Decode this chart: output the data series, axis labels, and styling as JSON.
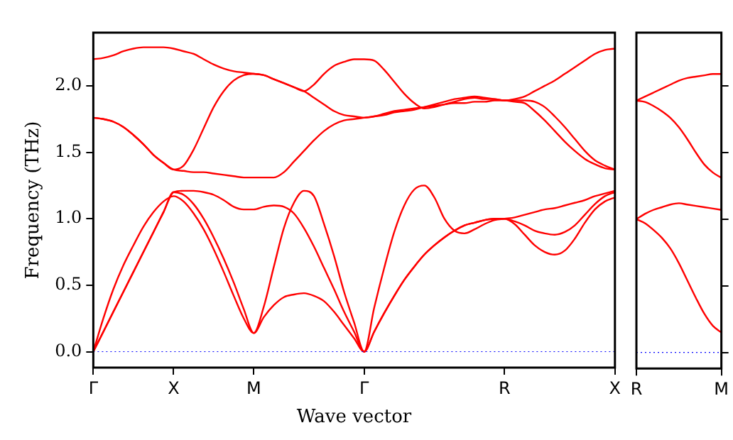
{
  "chart_data": [
    {
      "type": "line",
      "xlabel": "Wave vector",
      "ylabel": "Frequency (THz)",
      "categories": [
        "Γ",
        null,
        null,
        null,
        null,
        null,
        null,
        null,
        "X",
        null,
        null,
        null,
        null,
        null,
        null,
        null,
        "M",
        null,
        null,
        null,
        null,
        null,
        null,
        null,
        null,
        null,
        null,
        "Γ",
        null,
        null,
        null,
        null,
        null,
        null,
        null,
        null,
        null,
        null,
        null,
        null,
        null,
        "R",
        null,
        null,
        null,
        null,
        null,
        null,
        null,
        null,
        null,
        null,
        "X"
      ],
      "ylim": [
        -0.12,
        2.4
      ],
      "yticks": [
        {
          "value": 0,
          "label": "0.0"
        },
        {
          "value": 0.5,
          "label": "0.5"
        },
        {
          "value": 1,
          "label": "1.0"
        },
        {
          "value": 1.5,
          "label": "1.5"
        },
        {
          "value": 2,
          "label": "2.0"
        }
      ],
      "ref_lines": [
        {
          "axis": "y",
          "value": 0,
          "color": "#0000ff",
          "line_style": "dotted"
        }
      ],
      "series": [
        {
          "color": "#ff0000",
          "values": [
            0,
            0.15,
            0.3,
            0.45,
            0.6,
            0.75,
            0.9,
            1.05,
            1.2,
            1.18,
            1.11,
            1.0,
            0.86,
            0.7,
            0.52,
            0.32,
            0.14,
            0.34,
            0.64,
            0.93,
            1.12,
            1.21,
            1.17,
            0.96,
            0.72,
            0.45,
            0.22,
            0,
            0.33,
            0.63,
            0.9,
            1.1,
            1.22,
            1.25,
            1.16,
            1.0,
            0.91,
            0.89,
            0.92,
            0.96,
            0.99,
            1.0,
            1.01,
            1.03,
            1.05,
            1.07,
            1.08,
            1.1,
            1.12,
            1.14,
            1.17,
            1.19,
            1.21
          ]
        },
        {
          "color": "#ff0000",
          "values": [
            0,
            0.15,
            0.3,
            0.45,
            0.6,
            0.75,
            0.9,
            1.05,
            1.2,
            1.21,
            1.21,
            1.2,
            1.18,
            1.14,
            1.09,
            1.07,
            1.07,
            1.09,
            1.1,
            1.09,
            1.04,
            0.93,
            0.79,
            0.63,
            0.47,
            0.3,
            0.15,
            0,
            0.15,
            0.29,
            0.42,
            0.54,
            0.64,
            0.73,
            0.8,
            0.86,
            0.91,
            0.95,
            0.97,
            0.99,
            1.0,
            1.0,
            0.98,
            0.95,
            0.91,
            0.89,
            0.88,
            0.9,
            0.95,
            1.03,
            1.11,
            1.17,
            1.2
          ]
        },
        {
          "color": "#ff0000",
          "values": [
            0,
            0.25,
            0.47,
            0.65,
            0.8,
            0.94,
            1.05,
            1.13,
            1.17,
            1.13,
            1.04,
            0.92,
            0.77,
            0.6,
            0.42,
            0.25,
            0.14,
            0.26,
            0.35,
            0.41,
            0.43,
            0.44,
            0.42,
            0.38,
            0.3,
            0.2,
            0.1,
            0,
            0.15,
            0.29,
            0.42,
            0.54,
            0.64,
            0.73,
            0.8,
            0.86,
            0.91,
            0.95,
            0.97,
            0.99,
            1.0,
            1.0,
            0.96,
            0.88,
            0.8,
            0.75,
            0.73,
            0.76,
            0.85,
            0.97,
            1.07,
            1.13,
            1.16
          ]
        },
        {
          "color": "#ff0000",
          "values": [
            1.76,
            1.75,
            1.73,
            1.69,
            1.63,
            1.56,
            1.48,
            1.42,
            1.37,
            1.36,
            1.35,
            1.35,
            1.34,
            1.33,
            1.32,
            1.31,
            1.31,
            1.31,
            1.31,
            1.35,
            1.43,
            1.51,
            1.59,
            1.66,
            1.71,
            1.74,
            1.75,
            1.76,
            1.77,
            1.79,
            1.81,
            1.82,
            1.83,
            1.84,
            1.85,
            1.86,
            1.87,
            1.87,
            1.88,
            1.88,
            1.89,
            1.89,
            1.88,
            1.87,
            1.81,
            1.74,
            1.66,
            1.58,
            1.51,
            1.45,
            1.41,
            1.38,
            1.37
          ]
        },
        {
          "color": "#ff0000",
          "values": [
            1.76,
            1.75,
            1.73,
            1.69,
            1.63,
            1.56,
            1.48,
            1.42,
            1.37,
            1.4,
            1.52,
            1.68,
            1.84,
            1.96,
            2.04,
            2.08,
            2.09,
            2.08,
            2.05,
            2.02,
            1.99,
            1.96,
            1.91,
            1.86,
            1.81,
            1.78,
            1.77,
            1.76,
            1.77,
            1.78,
            1.8,
            1.81,
            1.82,
            1.84,
            1.86,
            1.88,
            1.9,
            1.91,
            1.92,
            1.91,
            1.9,
            1.89,
            1.9,
            1.92,
            1.96,
            2.0,
            2.04,
            2.09,
            2.14,
            2.19,
            2.24,
            2.27,
            2.28
          ]
        },
        {
          "color": "#ff0000",
          "values": [
            2.2,
            2.21,
            2.23,
            2.26,
            2.28,
            2.29,
            2.29,
            2.29,
            2.28,
            2.26,
            2.24,
            2.2,
            2.16,
            2.13,
            2.11,
            2.1,
            2.09,
            2.08,
            2.05,
            2.02,
            1.99,
            1.96,
            2.01,
            2.09,
            2.15,
            2.18,
            2.2,
            2.2,
            2.19,
            2.12,
            2.03,
            1.94,
            1.87,
            1.83,
            1.84,
            1.86,
            1.88,
            1.9,
            1.91,
            1.9,
            1.9,
            1.89,
            1.89,
            1.89,
            1.88,
            1.84,
            1.77,
            1.69,
            1.6,
            1.51,
            1.44,
            1.4,
            1.37
          ]
        }
      ]
    },
    {
      "type": "line",
      "tick_labels": "x",
      "categories": [
        "R",
        null,
        null,
        null,
        null,
        null,
        null,
        null,
        null,
        null,
        "M"
      ],
      "ylim": [
        -0.12,
        2.4
      ],
      "yticks": [
        {
          "value": 0,
          "label": null
        },
        {
          "value": 0.5,
          "label": null
        },
        {
          "value": 1,
          "label": null
        },
        {
          "value": 1.5,
          "label": null
        },
        {
          "value": 2,
          "label": null
        }
      ],
      "ref_lines": [
        {
          "axis": "y",
          "value": 0,
          "color": "#0000ff",
          "line_style": "dotted"
        }
      ],
      "series": [
        {
          "color": "#ff0000",
          "values": [
            1.0,
            0.97,
            0.92,
            0.86,
            0.78,
            0.67,
            0.54,
            0.41,
            0.29,
            0.2,
            0.15
          ]
        },
        {
          "color": "#ff0000",
          "values": [
            1.0,
            1.04,
            1.07,
            1.09,
            1.11,
            1.12,
            1.11,
            1.1,
            1.09,
            1.08,
            1.07
          ]
        },
        {
          "color": "#ff0000",
          "values": [
            1.89,
            1.88,
            1.85,
            1.81,
            1.76,
            1.69,
            1.6,
            1.5,
            1.41,
            1.35,
            1.31
          ]
        },
        {
          "color": "#ff0000",
          "values": [
            1.89,
            1.92,
            1.95,
            1.98,
            2.01,
            2.04,
            2.06,
            2.07,
            2.08,
            2.09,
            2.09
          ]
        }
      ]
    }
  ]
}
